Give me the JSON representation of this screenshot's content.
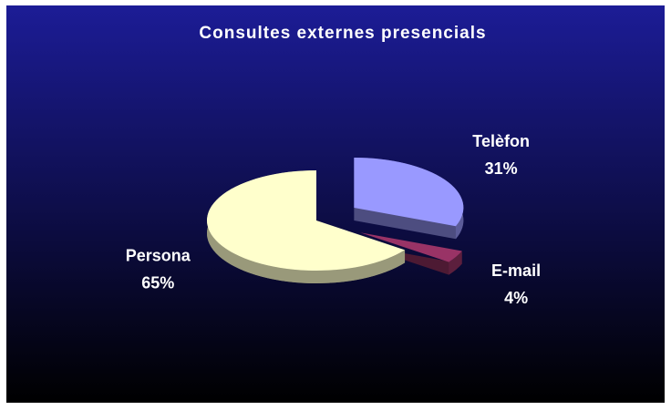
{
  "chart_data": {
    "type": "pie",
    "title": "Consultes externes presencials",
    "categories": [
      "Telèfon",
      "E-mail",
      "Persona"
    ],
    "values": [
      31,
      4,
      65
    ],
    "value_labels": [
      "31%",
      "4%",
      "65%"
    ],
    "colors": [
      "#9999ff",
      "#993366",
      "#ffffcc"
    ]
  }
}
